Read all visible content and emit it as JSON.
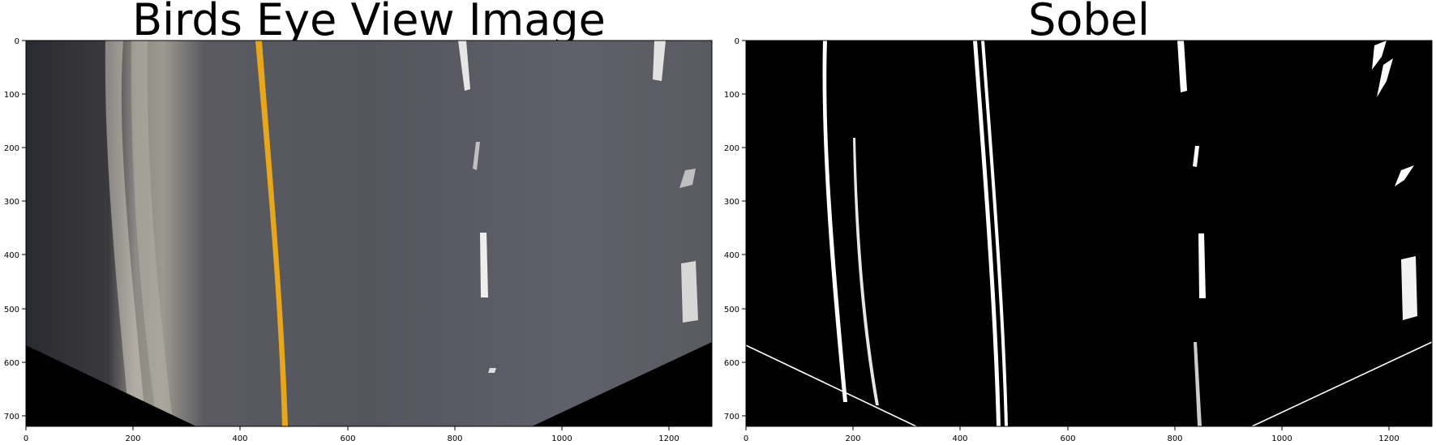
{
  "panels": [
    {
      "title": "Birds Eye View Image",
      "x_ticks": [
        "0",
        "200",
        "400",
        "600",
        "800",
        "1000",
        "1200"
      ],
      "y_ticks": [
        "0",
        "100",
        "200",
        "300",
        "400",
        "500",
        "600",
        "700"
      ]
    },
    {
      "title": "Sobel",
      "x_ticks": [
        "0",
        "200",
        "400",
        "600",
        "800",
        "1000",
        "1200"
      ],
      "y_ticks": [
        "0",
        "100",
        "200",
        "300",
        "400",
        "500",
        "600",
        "700"
      ]
    }
  ],
  "axis": {
    "x_max": 1280,
    "y_max": 720
  },
  "colors": {
    "road": "#55555e",
    "lane_yellow": "#e8a71a",
    "lane_white": "#d9d9d9",
    "background_black": "#000000",
    "edge_white": "#ffffff"
  }
}
